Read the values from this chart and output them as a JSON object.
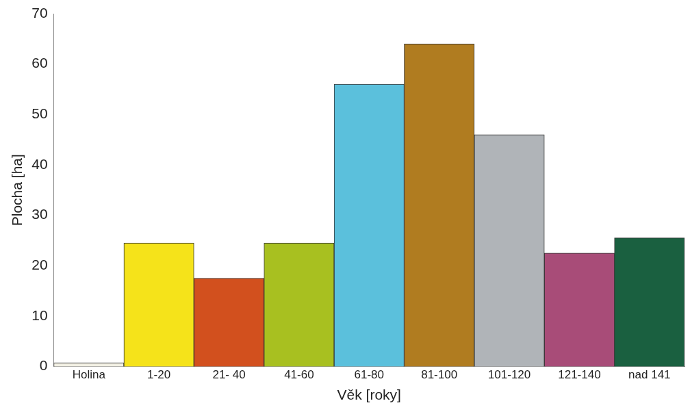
{
  "chart_data": {
    "type": "bar",
    "xlabel": "Věk [roky]",
    "ylabel": "Plocha [ha]",
    "categories": [
      "Holina",
      "1-20",
      "21- 40",
      "41-60",
      "61-80",
      "81-100",
      "101-120",
      "121-140",
      "nad 141"
    ],
    "values": [
      0.7,
      24.5,
      17.5,
      24.5,
      56,
      64,
      46,
      22.5,
      25.5
    ],
    "colors": [
      "#f2f0e4",
      "#f5e31a",
      "#d2501e",
      "#a8c020",
      "#5bc0dc",
      "#b07c20",
      "#b0b4b8",
      "#a84c78",
      "#1a6040"
    ],
    "ylim": [
      0,
      70
    ],
    "yticks": [
      0,
      10,
      20,
      30,
      40,
      50,
      60,
      70
    ],
    "grid": false,
    "legend": false
  }
}
